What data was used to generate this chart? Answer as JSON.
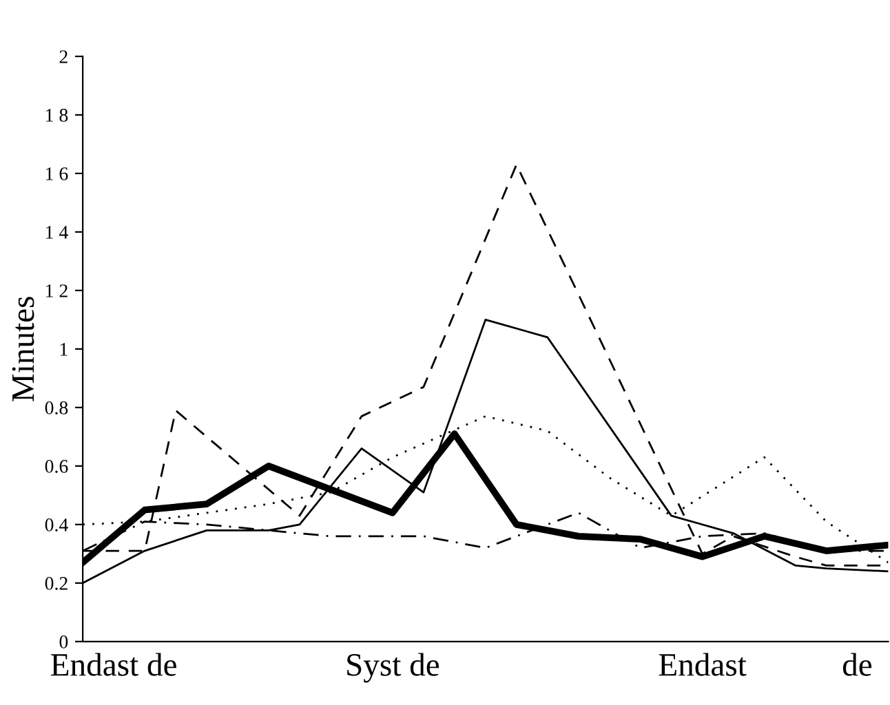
{
  "chart_data": {
    "type": "line",
    "ylabel": "Minutes",
    "categories": [
      null,
      "Endast de",
      null,
      null,
      null,
      null,
      null,
      null,
      null,
      null,
      "Syst de",
      null,
      null,
      null,
      null,
      null,
      null,
      null,
      null,
      null,
      "Endast",
      null,
      null,
      null,
      null,
      "de",
      null
    ],
    "ylim": [
      0,
      2
    ],
    "yticks": [
      0,
      0.2,
      0.4,
      0.6,
      0.8,
      1,
      {
        "value": 1.2,
        "label": "1 2"
      },
      {
        "value": 1.4,
        "label": "1 4"
      },
      {
        "value": 1.6,
        "label": "1 6"
      },
      {
        "value": 1.8,
        "label": "1 8"
      },
      2
    ],
    "grid": false,
    "legend": false,
    "series": [
      {
        "color": "#000000",
        "line_style": "solid",
        "values": [
          0.27,
          null,
          0.45,
          null,
          0.47,
          null,
          0.6,
          null,
          0.52,
          null,
          0.44,
          null,
          0.71,
          null,
          0.4,
          null,
          0.36,
          null,
          0.35,
          null,
          0.29,
          null,
          0.36,
          null,
          0.31,
          null,
          0.33
        ]
      },
      {
        "color": "#000000",
        "line_style": "solid",
        "values": [
          0.2,
          null,
          0.31,
          null,
          0.38,
          null,
          0.38,
          0.4,
          null,
          0.66,
          null,
          0.51,
          null,
          1.1,
          null,
          1.04,
          null,
          null,
          null,
          0.43,
          null,
          0.37,
          null,
          0.26,
          0.25,
          null,
          0.24
        ]
      },
      {
        "color": "#000000",
        "line_style": "dashed",
        "values": [
          0.31,
          null,
          0.31,
          0.79,
          null,
          null,
          null,
          0.43,
          null,
          0.77,
          null,
          0.87,
          null,
          null,
          1.63,
          null,
          null,
          null,
          null,
          null,
          0.3,
          0.36,
          null,
          0.29,
          0.26,
          null,
          0.26
        ]
      },
      {
        "color": "#000000",
        "line_style": "dashdot",
        "values": [
          0.31,
          null,
          0.41,
          null,
          0.4,
          null,
          0.38,
          null,
          0.36,
          null,
          null,
          0.36,
          null,
          0.32,
          null,
          null,
          0.44,
          null,
          0.32,
          null,
          0.36,
          null,
          0.37,
          null,
          0.31,
          null,
          0.31
        ]
      },
      {
        "color": "#000000",
        "line_style": "dotted",
        "values": [
          0.4,
          null,
          0.41,
          null,
          null,
          null,
          0.47,
          null,
          0.51,
          null,
          0.63,
          null,
          null,
          0.77,
          null,
          0.72,
          null,
          0.56,
          null,
          0.43,
          null,
          null,
          0.63,
          null,
          0.41,
          null,
          0.27
        ]
      }
    ]
  }
}
